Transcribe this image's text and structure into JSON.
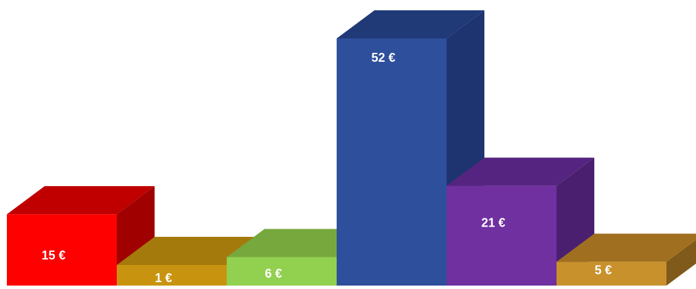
{
  "chart_data": {
    "type": "bar",
    "categories": [
      "",
      "",
      "",
      "",
      "",
      ""
    ],
    "values": [
      15,
      1,
      6,
      52,
      21,
      5
    ],
    "data_labels": [
      "15 €",
      "1 €",
      "6 €",
      "52 €",
      "21 €",
      "5 €"
    ],
    "title": "",
    "xlabel": "",
    "ylabel": "",
    "style": "3d-column",
    "grid": false,
    "legend": "none",
    "colors": [
      {
        "front": "#ff0000",
        "top": "#c00000",
        "side": "#a00000"
      },
      {
        "front": "#c89410",
        "top": "#a57a0c",
        "side": "#7d5c08"
      },
      {
        "front": "#92d050",
        "top": "#76a83e",
        "side": "#5b8230"
      },
      {
        "front": "#2e4f9c",
        "top": "#203a78",
        "side": "#1d3470"
      },
      {
        "front": "#7030a0",
        "top": "#552480",
        "side": "#4a1f70"
      },
      {
        "front": "#c8912c",
        "top": "#a07020",
        "side": "#7f5a1a"
      }
    ]
  }
}
